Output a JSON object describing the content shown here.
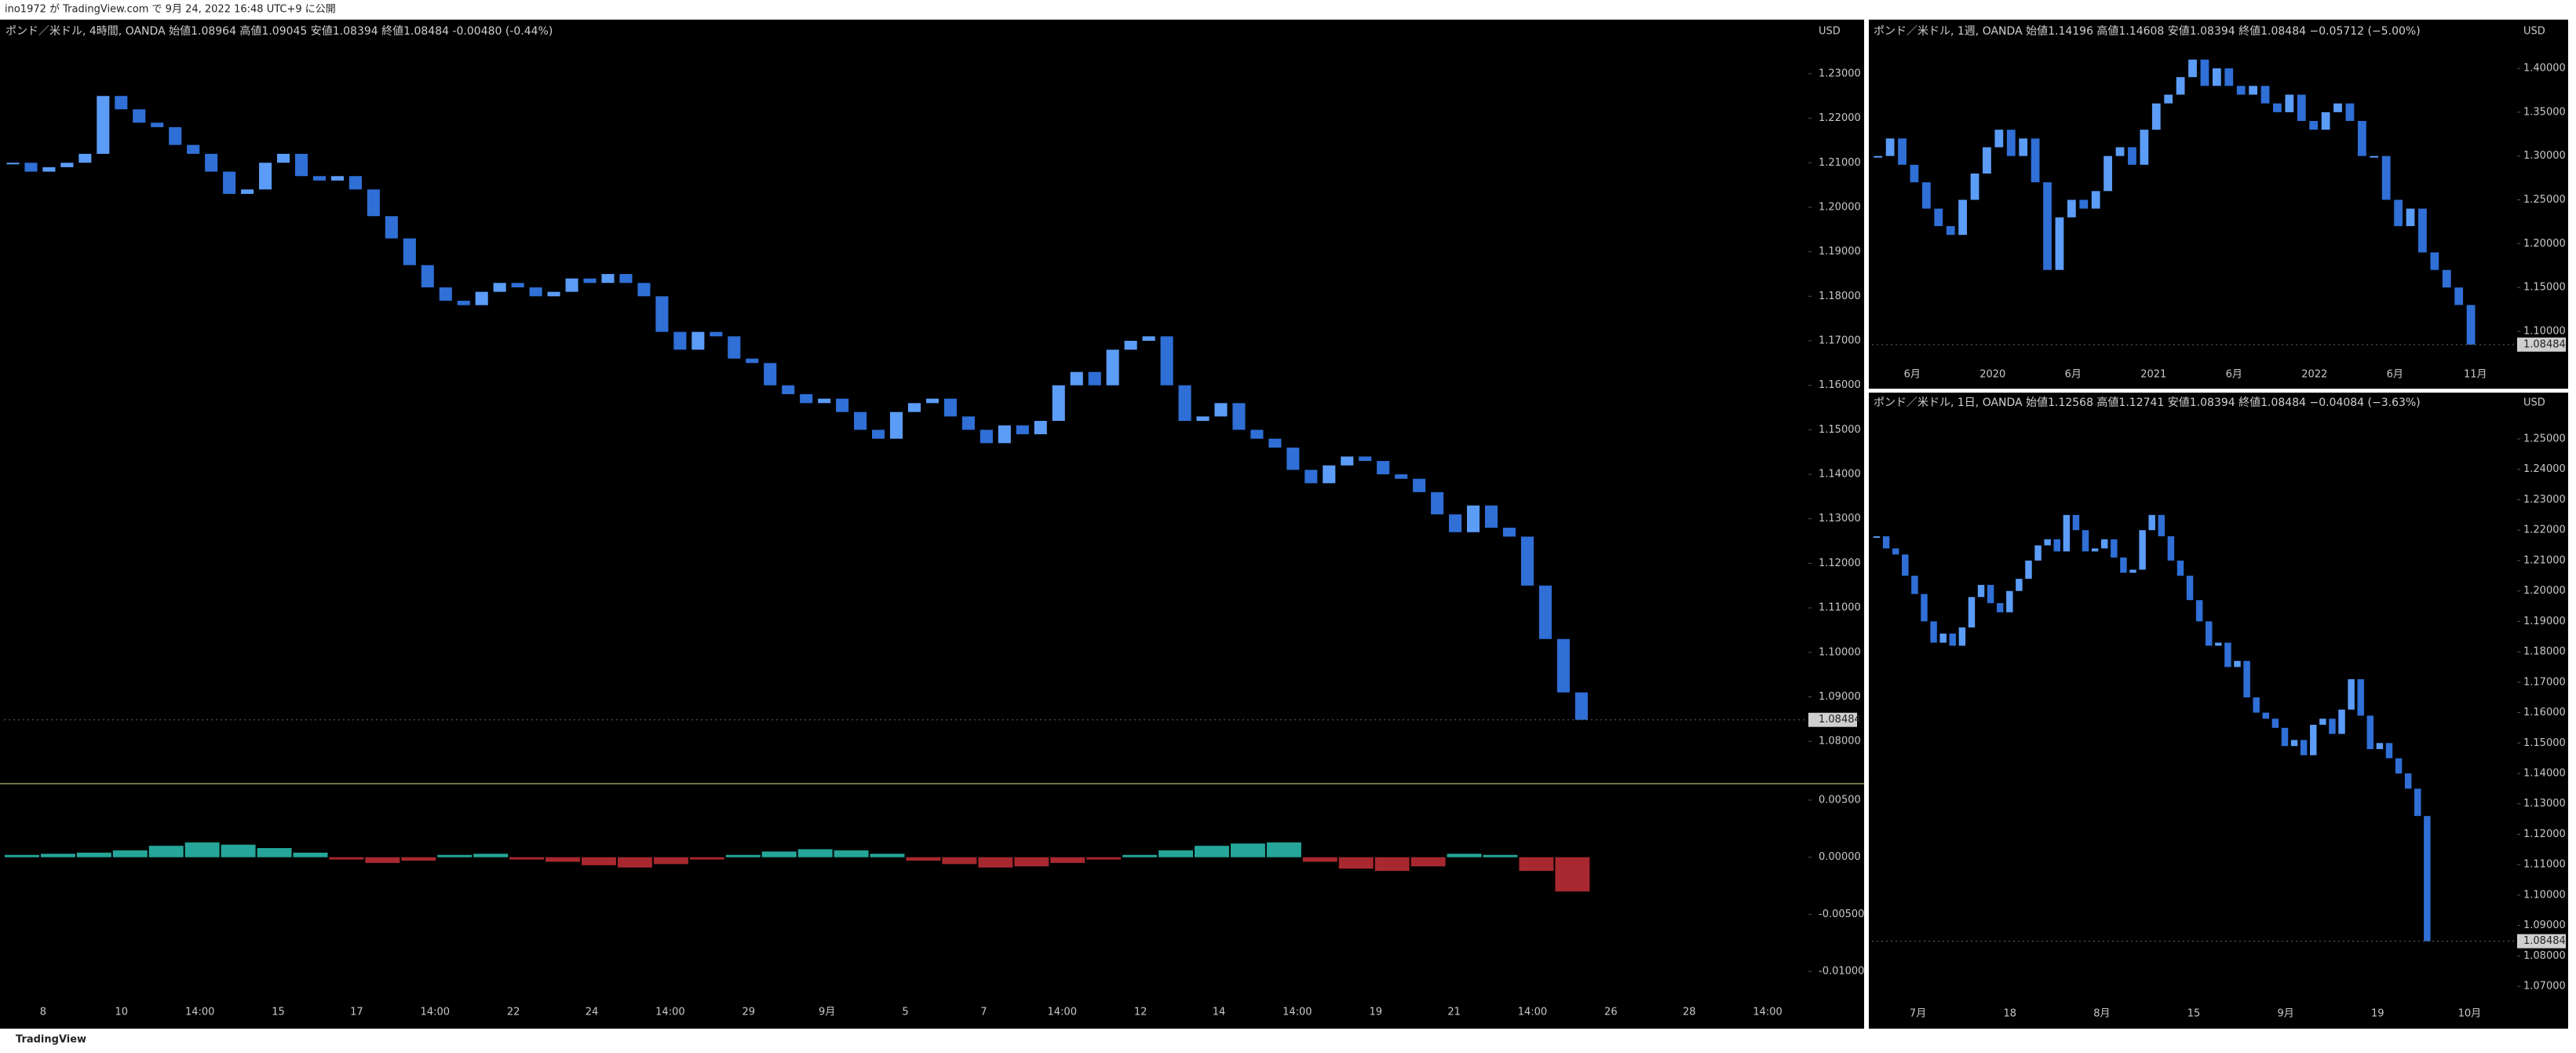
{
  "header": "ino1972 が TradingView.com で 9月 24, 2022 16:48 UTC+9 に公開",
  "footer": "TradingView",
  "chart_data": [
    {
      "type": "candlestick",
      "title": "ポンド／米ドル, 4時間, OANDA  始値1.08964  高値1.09045  安値1.08394  終値1.08484  -0.00480 (-0.44%)",
      "currency": "USD",
      "colors": {
        "up": "#5b9cf6",
        "down": "#2f6fd6"
      },
      "xtick_labels": [
        "8",
        "10",
        "14:00",
        "15",
        "17",
        "14:00",
        "22",
        "24",
        "14:00",
        "29",
        "9月",
        "5",
        "7",
        "14:00",
        "12",
        "14",
        "14:00",
        "19",
        "21",
        "14:00",
        "26",
        "28",
        "14:00"
      ],
      "values": [
        1.21,
        1.208,
        1.209,
        1.21,
        1.212,
        1.225,
        1.222,
        1.219,
        1.218,
        1.214,
        1.212,
        1.208,
        1.203,
        1.204,
        1.21,
        1.212,
        1.207,
        1.206,
        1.207,
        1.204,
        1.198,
        1.193,
        1.187,
        1.182,
        1.179,
        1.178,
        1.181,
        1.183,
        1.182,
        1.18,
        1.181,
        1.184,
        1.183,
        1.185,
        1.183,
        1.18,
        1.172,
        1.168,
        1.172,
        1.171,
        1.166,
        1.165,
        1.16,
        1.158,
        1.156,
        1.157,
        1.154,
        1.15,
        1.148,
        1.154,
        1.156,
        1.157,
        1.153,
        1.15,
        1.147,
        1.151,
        1.149,
        1.152,
        1.16,
        1.163,
        1.16,
        1.168,
        1.17,
        1.171,
        1.16,
        1.152,
        1.153,
        1.156,
        1.15,
        1.148,
        1.146,
        1.141,
        1.138,
        1.142,
        1.144,
        1.143,
        1.14,
        1.139,
        1.136,
        1.131,
        1.127,
        1.133,
        1.128,
        1.126,
        1.115,
        1.103,
        1.091,
        1.08484
      ],
      "last_price": {
        "value": 1.08484,
        "label": "1.08484"
      },
      "ylim": [
        1.0705,
        1.2418
      ],
      "yticks": [
        {
          "value": 1.08,
          "label": "1.08000"
        },
        {
          "value": 1.09,
          "label": "1.09000"
        },
        {
          "value": 1.1,
          "label": "1.10000"
        },
        {
          "value": 1.11,
          "label": "1.11000"
        },
        {
          "value": 1.12,
          "label": "1.12000"
        },
        {
          "value": 1.13,
          "label": "1.13000"
        },
        {
          "value": 1.14,
          "label": "1.14000"
        },
        {
          "value": 1.15,
          "label": "1.15000"
        },
        {
          "value": 1.16,
          "label": "1.16000"
        },
        {
          "value": 1.17,
          "label": "1.17000"
        },
        {
          "value": 1.18,
          "label": "1.18000"
        },
        {
          "value": 1.19,
          "label": "1.19000"
        },
        {
          "value": 1.2,
          "label": "1.20000"
        },
        {
          "value": 1.21,
          "label": "1.21000"
        },
        {
          "value": 1.22,
          "label": "1.22000"
        },
        {
          "value": 1.23,
          "label": "1.23000"
        }
      ],
      "macd": {
        "colors": {
          "up": "#26a69a",
          "down": "#a8282f"
        },
        "values": [
          0.0002,
          0.0003,
          0.0004,
          0.0006,
          0.001,
          0.0013,
          0.0011,
          0.0008,
          0.0004,
          -0.0002,
          -0.0005,
          -0.0003,
          0.0002,
          0.0003,
          -0.0002,
          -0.0004,
          -0.0007,
          -0.0009,
          -0.0006,
          -0.0002,
          0.0002,
          0.0005,
          0.0007,
          0.0006,
          0.0003,
          -0.0003,
          -0.0006,
          -0.0009,
          -0.0008,
          -0.0005,
          -0.0002,
          0.0002,
          0.0006,
          0.001,
          0.0012,
          0.0013,
          -0.0004,
          -0.001,
          -0.0012,
          -0.0008,
          0.0003,
          0.0002,
          -0.0012,
          -0.003
        ],
        "ylim": [
          -0.01274,
          0.00644
        ],
        "yticks": [
          {
            "value": 0.005,
            "label": "0.00500"
          },
          {
            "value": 0,
            "label": "0.00000"
          },
          {
            "value": -0.005,
            "label": "-0.00500"
          },
          {
            "value": -0.01,
            "label": "-0.01000"
          }
        ]
      }
    },
    {
      "type": "candlestick",
      "title": "ポンド／米ドル, 1週, OANDA  始値1.14196  高値1.14608  安値1.08394  終値1.08484  −0.05712 (−5.00%)",
      "currency": "USD",
      "colors": {
        "up": "#5b9cf6",
        "down": "#2f6fd6"
      },
      "xtick_labels": [
        "6月",
        "2020",
        "6月",
        "2021",
        "6月",
        "2022",
        "6月",
        "11月"
      ],
      "values": [
        1.3,
        1.32,
        1.29,
        1.27,
        1.24,
        1.22,
        1.21,
        1.25,
        1.28,
        1.31,
        1.33,
        1.3,
        1.32,
        1.27,
        1.17,
        1.23,
        1.25,
        1.24,
        1.26,
        1.3,
        1.31,
        1.29,
        1.33,
        1.36,
        1.37,
        1.39,
        1.41,
        1.38,
        1.4,
        1.38,
        1.37,
        1.38,
        1.36,
        1.35,
        1.37,
        1.34,
        1.33,
        1.35,
        1.36,
        1.34,
        1.3,
        1.3,
        1.25,
        1.22,
        1.24,
        1.19,
        1.17,
        1.15,
        1.13,
        1.08484
      ],
      "last_price": {
        "value": 1.08484,
        "label": "1.08484"
      },
      "ylim": [
        1.0614,
        1.4538
      ],
      "yticks": [
        {
          "value": 1.1,
          "label": "1.10000"
        },
        {
          "value": 1.15,
          "label": "1.15000"
        },
        {
          "value": 1.2,
          "label": "1.20000"
        },
        {
          "value": 1.25,
          "label": "1.25000"
        },
        {
          "value": 1.3,
          "label": "1.30000"
        },
        {
          "value": 1.35,
          "label": "1.35000"
        },
        {
          "value": 1.4,
          "label": "1.40000"
        }
      ]
    },
    {
      "type": "candlestick",
      "title": "ポンド／米ドル, 1日, OANDA  始値1.12568  高値1.12741  安値1.08394  終値1.08484  −0.04084 (−3.63%)",
      "currency": "USD",
      "colors": {
        "up": "#5b9cf6",
        "down": "#2f6fd6"
      },
      "xtick_labels": [
        "7月",
        "18",
        "8月",
        "15",
        "9月",
        "19",
        "10月"
      ],
      "values": [
        1.218,
        1.214,
        1.212,
        1.205,
        1.199,
        1.19,
        1.183,
        1.186,
        1.182,
        1.188,
        1.198,
        1.202,
        1.196,
        1.193,
        1.2,
        1.204,
        1.21,
        1.215,
        1.217,
        1.213,
        1.225,
        1.22,
        1.213,
        1.214,
        1.217,
        1.211,
        1.206,
        1.207,
        1.22,
        1.225,
        1.218,
        1.21,
        1.205,
        1.197,
        1.19,
        1.182,
        1.183,
        1.175,
        1.177,
        1.165,
        1.16,
        1.158,
        1.155,
        1.149,
        1.151,
        1.146,
        1.156,
        1.158,
        1.153,
        1.161,
        1.171,
        1.159,
        1.148,
        1.15,
        1.145,
        1.14,
        1.135,
        1.126,
        1.08484
      ],
      "last_price": {
        "value": 1.08484,
        "label": "1.08484"
      },
      "ylim": [
        1.0646,
        1.2549
      ],
      "yticks": [
        {
          "value": 1.07,
          "label": "1.07000"
        },
        {
          "value": 1.08,
          "label": "1.08000"
        },
        {
          "value": 1.09,
          "label": "1.09000"
        },
        {
          "value": 1.1,
          "label": "1.10000"
        },
        {
          "value": 1.11,
          "label": "1.11000"
        },
        {
          "value": 1.12,
          "label": "1.12000"
        },
        {
          "value": 1.13,
          "label": "1.13000"
        },
        {
          "value": 1.14,
          "label": "1.14000"
        },
        {
          "value": 1.15,
          "label": "1.15000"
        },
        {
          "value": 1.16,
          "label": "1.16000"
        },
        {
          "value": 1.17,
          "label": "1.17000"
        },
        {
          "value": 1.18,
          "label": "1.18000"
        },
        {
          "value": 1.19,
          "label": "1.19000"
        },
        {
          "value": 1.2,
          "label": "1.20000"
        },
        {
          "value": 1.21,
          "label": "1.21000"
        },
        {
          "value": 1.22,
          "label": "1.22000"
        },
        {
          "value": 1.23,
          "label": "1.23000"
        },
        {
          "value": 1.24,
          "label": "1.24000"
        },
        {
          "value": 1.25,
          "label": "1.25000"
        }
      ]
    }
  ]
}
